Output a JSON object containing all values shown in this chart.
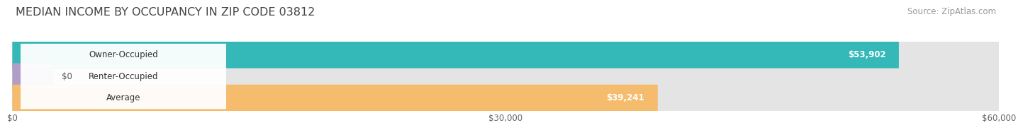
{
  "title": "MEDIAN INCOME BY OCCUPANCY IN ZIP CODE 03812",
  "source": "Source: ZipAtlas.com",
  "categories": [
    "Owner-Occupied",
    "Renter-Occupied",
    "Average"
  ],
  "values": [
    53902,
    0,
    39241
  ],
  "labels": [
    "$53,902",
    "$0",
    "$39,241"
  ],
  "bar_colors": [
    "#35b8b8",
    "#b09dc8",
    "#f5bc6e"
  ],
  "bar_bg_color": "#e8e8e8",
  "x_max": 60000,
  "x_ticks": [
    0,
    30000,
    60000
  ],
  "x_tick_labels": [
    "$0",
    "$30,000",
    "$60,000"
  ],
  "title_fontsize": 11.5,
  "source_fontsize": 8.5,
  "label_fontsize": 8.5,
  "value_fontsize": 8.5,
  "background_color": "#ffffff"
}
